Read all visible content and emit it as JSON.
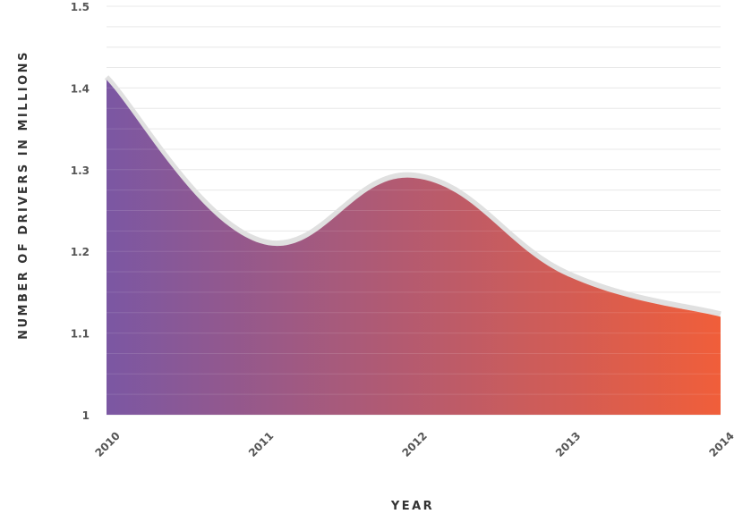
{
  "chart_data": {
    "type": "area",
    "title": "",
    "xlabel": "YEAR",
    "ylabel": "NUMBER OF DRIVERS IN MILLIONS",
    "categories": [
      "2010",
      "2011",
      "2012",
      "2013",
      "2014"
    ],
    "series": [
      {
        "values": [
          1.41,
          1.21,
          1.29,
          1.17,
          1.12
        ]
      }
    ],
    "ylim": [
      1,
      1.5
    ],
    "yticks": [
      "1",
      "1.1",
      "1.2",
      "1.3",
      "1.4",
      "1.5"
    ],
    "grid": true,
    "gradient": [
      "#7b57a3",
      "#f05e3a"
    ],
    "shadow_color": "#e0e0e0",
    "grid_color": "#e6e6e6"
  }
}
